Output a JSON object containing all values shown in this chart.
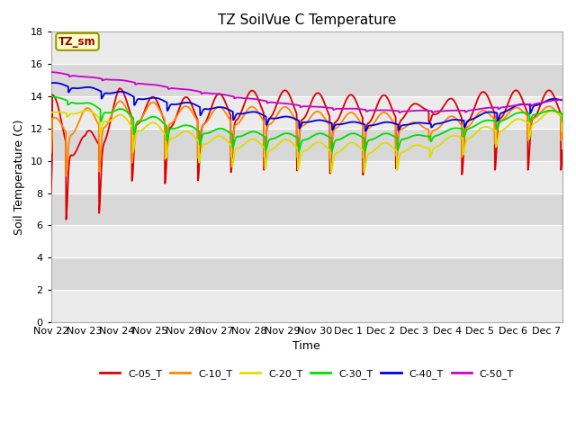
{
  "title": "TZ SoilVue C Temperature",
  "xlabel": "Time",
  "ylabel": "Soil Temperature (C)",
  "ylim": [
    0,
    18
  ],
  "yticks": [
    0,
    2,
    4,
    6,
    8,
    10,
    12,
    14,
    16,
    18
  ],
  "series_colors": {
    "C-05_T": "#dd0000",
    "C-10_T": "#ff8800",
    "C-20_T": "#dddd00",
    "C-30_T": "#00dd00",
    "C-40_T": "#0000dd",
    "C-50_T": "#cc00cc"
  },
  "legend_label": "TZ_sm",
  "background_color": "#ffffff",
  "plot_bg_light": "#ebebeb",
  "plot_bg_dark": "#d8d8d8",
  "grid_color": "#ffffff",
  "xtick_labels": [
    "Nov 22",
    "Nov 23",
    "Nov 24",
    "Nov 25",
    "Nov 26",
    "Nov 27",
    "Nov 28",
    "Nov 29",
    "Nov 30",
    "Dec 1",
    "Dec 2",
    "Dec 3",
    "Dec 4",
    "Dec 5",
    "Dec 6",
    "Dec 7"
  ],
  "xtick_positions": [
    0,
    1,
    2,
    3,
    4,
    5,
    6,
    7,
    8,
    9,
    10,
    11,
    12,
    13,
    14,
    15
  ]
}
